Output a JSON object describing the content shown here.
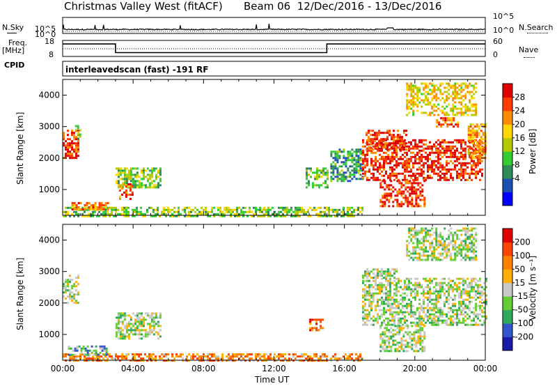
{
  "header": {
    "title": "Christmas Valley West (fitACF)",
    "beam": "Beam 06",
    "date_range": "12/Dec/2016 - 13/Dec/2016"
  },
  "strip_labels": {
    "nsky": "N.Sky",
    "nsearch": "N.Search",
    "freq": "Freq.",
    "freq_unit": "[MHz]",
    "nave": "Nave",
    "cpid": "CPID",
    "cpid_value": "interleavedscan (fast) -191 RF"
  },
  "strip_ticks": {
    "noise_left": [
      "10^5",
      "10^0"
    ],
    "noise_right": [
      "10^5",
      "10^0"
    ],
    "freq_left": [
      "18",
      "8"
    ],
    "nave_right": [
      "60",
      "0"
    ]
  },
  "colorbars": {
    "power": {
      "title": "Power [dB]",
      "labels": [
        "28",
        "24",
        "20",
        "16",
        "12",
        "8",
        "4"
      ],
      "colors": [
        "#0000ff",
        "#1e50b4",
        "#2e8b57",
        "#33cc33",
        "#b5c800",
        "#ffd700",
        "#ff8c00",
        "#ff3b00",
        "#e00000"
      ]
    },
    "velocity": {
      "title": "Velocity [m s⁻¹]",
      "labels": [
        "200",
        "100",
        "50",
        "15",
        "-15",
        "-50",
        "-100",
        "-200"
      ],
      "colors": [
        "#1a1aa8",
        "#3355cc",
        "#2ea85a",
        "#66cc33",
        "#c8c8c8",
        "#ffb000",
        "#ff8000",
        "#ff4400",
        "#e00000"
      ]
    }
  },
  "chart_data": [
    {
      "type": "heatmap",
      "title": "",
      "ylabel": "Slant Range [km]",
      "xlabel": "",
      "x_ticks": [
        "00:00",
        "04:00",
        "08:00",
        "12:00",
        "16:00",
        "20:00",
        "00:00"
      ],
      "y_ticks": [
        "1000",
        "2000",
        "3000",
        "4000"
      ],
      "xlim_hours": [
        0,
        24
      ],
      "ylim_km": [
        180,
        4500
      ],
      "colorbar": "power",
      "regions": [
        {
          "t0": 0.0,
          "t1": 17.0,
          "r0": 180,
          "r1": 450,
          "level": 0.45
        },
        {
          "t0": 0.5,
          "t1": 2.6,
          "r0": 350,
          "r1": 600,
          "level": 0.75
        },
        {
          "t0": 0.0,
          "t1": 0.9,
          "r0": 2000,
          "r1": 2900,
          "level": 0.85
        },
        {
          "t0": 0.7,
          "t1": 1.0,
          "r0": 2600,
          "r1": 3050,
          "level": 0.5
        },
        {
          "t0": 3.0,
          "t1": 5.5,
          "r0": 1100,
          "r1": 1700,
          "level": 0.45
        },
        {
          "t0": 3.2,
          "t1": 4.0,
          "r0": 700,
          "r1": 1200,
          "level": 0.8
        },
        {
          "t0": 13.8,
          "t1": 15.0,
          "r0": 1100,
          "r1": 1700,
          "level": 0.4
        },
        {
          "t0": 15.2,
          "t1": 17.0,
          "r0": 1300,
          "r1": 2300,
          "level": 0.3
        },
        {
          "t0": 17.0,
          "t1": 23.8,
          "r0": 1300,
          "r1": 2600,
          "level": 0.9
        },
        {
          "t0": 17.2,
          "t1": 19.5,
          "r0": 2300,
          "r1": 2900,
          "level": 0.85
        },
        {
          "t0": 18.0,
          "t1": 20.5,
          "r0": 500,
          "r1": 1300,
          "level": 0.88
        },
        {
          "t0": 21.2,
          "t1": 22.5,
          "r0": 3000,
          "r1": 3300,
          "level": 0.8
        },
        {
          "t0": 19.5,
          "t1": 23.5,
          "r0": 3400,
          "r1": 4400,
          "level": 0.6
        },
        {
          "t0": 23.0,
          "t1": 24.0,
          "r0": 2000,
          "r1": 3100,
          "level": 0.7
        }
      ]
    },
    {
      "type": "heatmap",
      "title": "",
      "ylabel": "Slant Range [km]",
      "xlabel": "Time UT",
      "x_ticks": [
        "00:00",
        "04:00",
        "08:00",
        "12:00",
        "16:00",
        "20:00",
        "00:00"
      ],
      "y_ticks": [
        "1000",
        "2000",
        "3000",
        "4000"
      ],
      "xlim_hours": [
        0,
        24
      ],
      "ylim_km": [
        180,
        4500
      ],
      "colorbar": "velocity",
      "regions": [
        {
          "t0": 0.0,
          "t1": 17.0,
          "r0": 180,
          "r1": 400,
          "level": 0.7
        },
        {
          "t0": 0.3,
          "t1": 2.5,
          "r0": 350,
          "r1": 650,
          "level": 0.35
        },
        {
          "t0": 0.0,
          "t1": 0.9,
          "r0": 2000,
          "r1": 2900,
          "level": 0.45
        },
        {
          "t0": 3.0,
          "t1": 5.5,
          "r0": 900,
          "r1": 1700,
          "level": 0.45
        },
        {
          "t0": 14.0,
          "t1": 14.8,
          "r0": 1150,
          "r1": 1500,
          "level": 0.8
        },
        {
          "t0": 17.0,
          "t1": 24.0,
          "r0": 1300,
          "r1": 2800,
          "level": 0.45
        },
        {
          "t0": 18.0,
          "t1": 20.5,
          "r0": 500,
          "r1": 1300,
          "level": 0.45
        },
        {
          "t0": 19.5,
          "t1": 23.5,
          "r0": 3400,
          "r1": 4400,
          "level": 0.45
        },
        {
          "t0": 17.0,
          "t1": 19.0,
          "r0": 2800,
          "r1": 3100,
          "level": 0.45
        }
      ]
    }
  ],
  "freq_trace": [
    {
      "t0": 0.0,
      "t1": 3.0,
      "freq": 15.8
    },
    {
      "t0": 3.0,
      "t1": 15.0,
      "freq": 10.4
    },
    {
      "t0": 15.0,
      "t1": 24.0,
      "freq": 15.8
    }
  ],
  "x_axis_title": "Time UT"
}
